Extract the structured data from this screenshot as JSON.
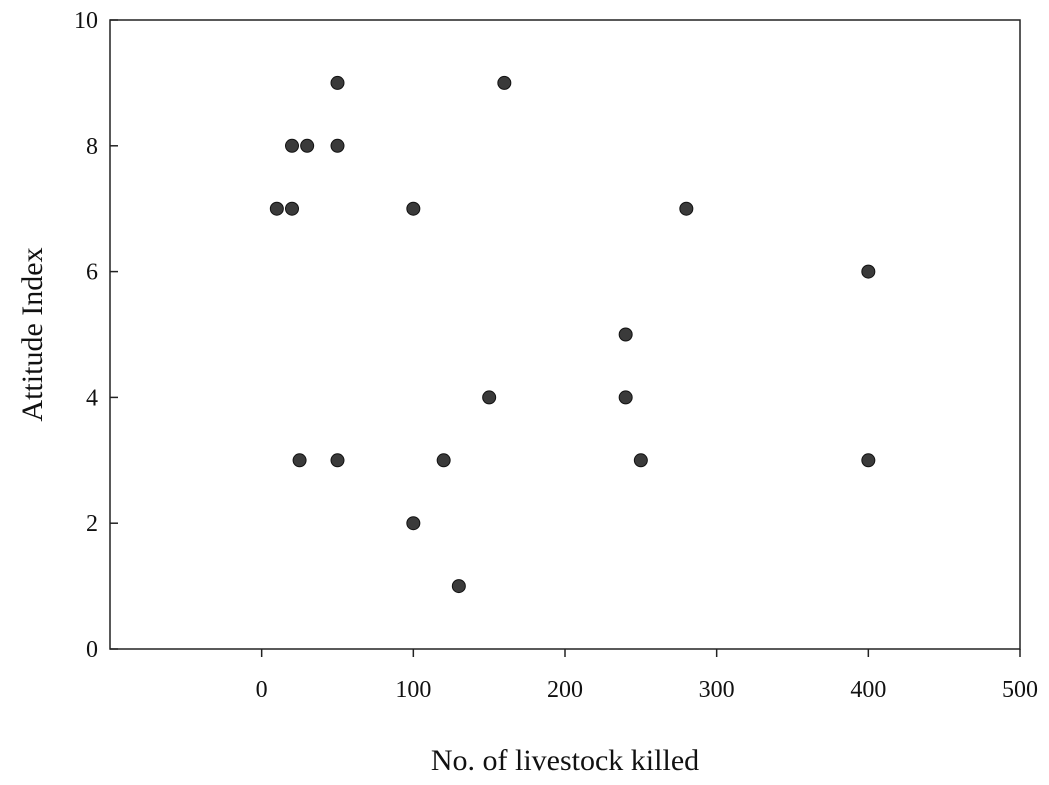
{
  "chart_data": {
    "type": "scatter",
    "title": "",
    "xlabel": "No. of livestock killed",
    "ylabel": "Attitude Index",
    "xlim": [
      -100,
      500
    ],
    "ylim": [
      0,
      10
    ],
    "xticks": [
      0,
      100,
      200,
      300,
      400,
      500
    ],
    "yticks": [
      0,
      2,
      4,
      6,
      8,
      10
    ],
    "grid": false,
    "legend": "none",
    "marker_color": "#3a3a3a",
    "points": [
      {
        "x": 50,
        "y": 9
      },
      {
        "x": 160,
        "y": 9
      },
      {
        "x": 20,
        "y": 8
      },
      {
        "x": 30,
        "y": 8
      },
      {
        "x": 50,
        "y": 8
      },
      {
        "x": 10,
        "y": 7
      },
      {
        "x": 20,
        "y": 7
      },
      {
        "x": 100,
        "y": 7
      },
      {
        "x": 280,
        "y": 7
      },
      {
        "x": 400,
        "y": 6
      },
      {
        "x": 240,
        "y": 5
      },
      {
        "x": 150,
        "y": 4
      },
      {
        "x": 240,
        "y": 4
      },
      {
        "x": 25,
        "y": 3
      },
      {
        "x": 50,
        "y": 3
      },
      {
        "x": 120,
        "y": 3
      },
      {
        "x": 250,
        "y": 3
      },
      {
        "x": 400,
        "y": 3
      },
      {
        "x": 100,
        "y": 2
      },
      {
        "x": 130,
        "y": 1
      }
    ]
  }
}
